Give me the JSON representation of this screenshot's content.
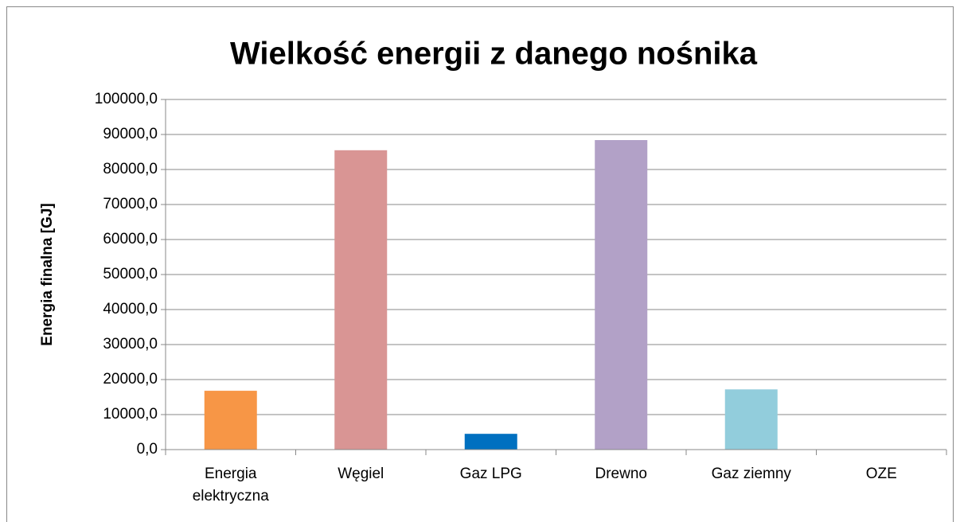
{
  "chart_data": {
    "type": "bar",
    "title": "Wielkość energii z danego nośnika",
    "y_label": "Energia finalna [GJ]",
    "categories": [
      "Energia elektryczna",
      "Węgiel",
      "Gaz LPG",
      "Drewno",
      "Gaz ziemny",
      "OZE"
    ],
    "values": [
      16800,
      85500,
      4500,
      88400,
      17200,
      0
    ],
    "colors": [
      "#f79646",
      "#d99594",
      "#0070c0",
      "#b2a1c7",
      "#92cddc",
      null
    ],
    "ylim": [
      0,
      100000
    ],
    "yticks": [
      {
        "value": 0,
        "label": "0,0"
      },
      {
        "value": 10000,
        "label": "10000,0"
      },
      {
        "value": 20000,
        "label": "20000,0"
      },
      {
        "value": 30000,
        "label": "30000,0"
      },
      {
        "value": 40000,
        "label": "40000,0"
      },
      {
        "value": 50000,
        "label": "50000,0"
      },
      {
        "value": 60000,
        "label": "60000,0"
      },
      {
        "value": 70000,
        "label": "70000,0"
      },
      {
        "value": 80000,
        "label": "80000,0"
      },
      {
        "value": 90000,
        "label": "90000,0"
      },
      {
        "value": 100000,
        "label": "100000,0"
      }
    ],
    "grid": true
  }
}
